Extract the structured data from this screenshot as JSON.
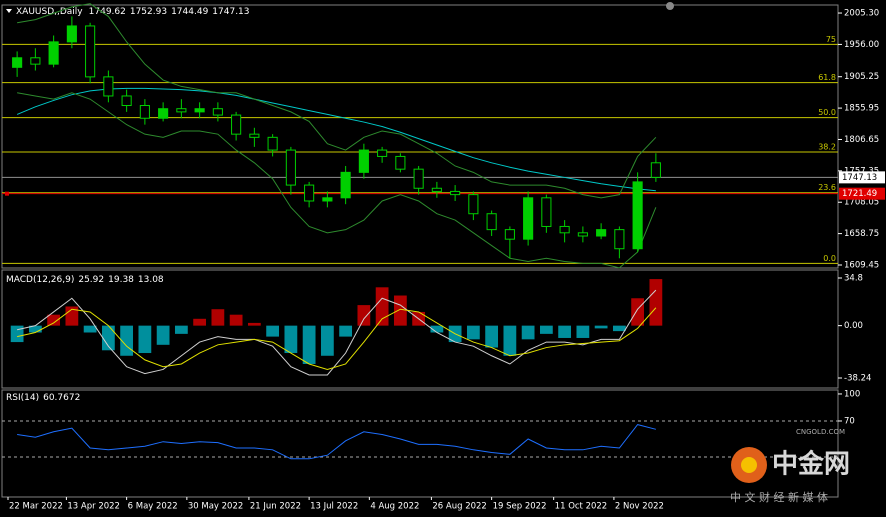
{
  "chart_data": [
    {
      "type": "candlestick",
      "title": "XAUUSD,,Daily",
      "readouts": [
        1749.62,
        1752.93,
        1744.49,
        1747.13
      ],
      "open": [
        1920,
        1935,
        1925,
        1960,
        1985,
        1905,
        1875,
        1860,
        1840,
        1855,
        1850,
        1855,
        1845,
        1815,
        1810,
        1790,
        1735,
        1710,
        1715,
        1755,
        1790,
        1780,
        1760,
        1730,
        1725,
        1720,
        1690,
        1665,
        1650,
        1715,
        1670,
        1660,
        1655,
        1665,
        1635,
        1770
      ],
      "high": [
        1945,
        1950,
        1970,
        2000,
        1990,
        1915,
        1885,
        1870,
        1865,
        1870,
        1865,
        1865,
        1850,
        1825,
        1815,
        1795,
        1740,
        1725,
        1765,
        1800,
        1795,
        1785,
        1765,
        1740,
        1735,
        1725,
        1695,
        1670,
        1725,
        1720,
        1680,
        1670,
        1675,
        1670,
        1755,
        1785
      ],
      "low": [
        1905,
        1915,
        1920,
        1950,
        1895,
        1865,
        1850,
        1830,
        1835,
        1840,
        1840,
        1835,
        1805,
        1795,
        1780,
        1720,
        1700,
        1700,
        1705,
        1745,
        1770,
        1755,
        1720,
        1715,
        1710,
        1680,
        1655,
        1620,
        1640,
        1660,
        1645,
        1645,
        1650,
        1620,
        1630,
        1740
      ],
      "close": [
        1935,
        1925,
        1960,
        1985,
        1905,
        1875,
        1860,
        1840,
        1855,
        1850,
        1855,
        1845,
        1815,
        1810,
        1790,
        1735,
        1710,
        1715,
        1755,
        1790,
        1780,
        1760,
        1730,
        1725,
        1720,
        1690,
        1665,
        1650,
        1715,
        1670,
        1660,
        1655,
        1665,
        1635,
        1740,
        1747.13
      ],
      "color": "#00d000",
      "lines": [
        {
          "color": "#00c8c8",
          "values": [
            1846,
            1858,
            1868,
            1877,
            1883,
            1886,
            1887,
            1887,
            1886,
            1885,
            1883,
            1880,
            1876,
            1870,
            1864,
            1858,
            1852,
            1846,
            1840,
            1834,
            1827,
            1818,
            1808,
            1798,
            1788,
            1778,
            1770,
            1763,
            1757,
            1752,
            1747,
            1742,
            1737,
            1733,
            1729,
            1726
          ]
        },
        {
          "color": "#2e8b2e",
          "values": [
            1990,
            1995,
            2005,
            2015,
            2020,
            2000,
            1960,
            1925,
            1900,
            1890,
            1885,
            1880,
            1880,
            1870,
            1860,
            1850,
            1835,
            1800,
            1790,
            1810,
            1820,
            1815,
            1800,
            1785,
            1765,
            1755,
            1740,
            1735,
            1735,
            1735,
            1730,
            1720,
            1715,
            1720,
            1780,
            1810
          ]
        },
        {
          "color": "#2e8b2e",
          "values": [
            1880,
            1875,
            1870,
            1880,
            1870,
            1850,
            1830,
            1815,
            1810,
            1820,
            1820,
            1815,
            1790,
            1770,
            1745,
            1700,
            1670,
            1660,
            1665,
            1680,
            1710,
            1720,
            1710,
            1690,
            1680,
            1660,
            1640,
            1620,
            1615,
            1620,
            1615,
            1612,
            1612,
            1605,
            1630,
            1700
          ]
        }
      ],
      "fib_levels": [
        {
          "label": "75",
          "price": 1956
        },
        {
          "label": "61.8",
          "price": 1896
        },
        {
          "label": "50.0",
          "price": 1841
        },
        {
          "label": "38.2",
          "price": 1787
        },
        {
          "label": "23.6",
          "price": 1723
        },
        {
          "label": "0.0",
          "price": 1612
        }
      ],
      "fib_color": "#c8c800",
      "last_price": 1747.13,
      "marker_price": 1721.49,
      "ylim": [
        1604.72,
        2017.92
      ],
      "yticks": [
        {
          "value": 2005.3,
          "label": "2005.30"
        },
        {
          "value": 1956,
          "label": "1956.00"
        },
        1905.25,
        1855.95,
        1806.65,
        1757.35,
        1708.05,
        1658.75,
        1609.45
      ],
      "xticks": [
        {
          "value": 0,
          "label": "22 Mar 2022"
        },
        {
          "value": 3.2,
          "label": "13 Apr 2022"
        },
        {
          "value": 6.5,
          "label": "6 May 2022"
        },
        {
          "value": 9.8,
          "label": "30 May 2022"
        },
        {
          "value": 13.2,
          "label": "21 Jun 2022"
        },
        {
          "value": 16.5,
          "label": "13 Jul 2022"
        },
        {
          "value": 19.8,
          "label": "4 Aug 2022"
        },
        {
          "value": 23.2,
          "label": "26 Aug 2022"
        },
        {
          "value": 26.5,
          "label": "19 Sep 2022"
        },
        {
          "value": 29.9,
          "label": "11 Oct 2022"
        },
        {
          "value": 33.2,
          "label": "2 Nov 2022"
        }
      ]
    },
    {
      "type": "macd",
      "title": "MACD(12,26,9)",
      "readouts": [
        25.92,
        19.38,
        13.08
      ],
      "histogram": {
        "up_color": "#d00000",
        "down_color": "#00a8b8",
        "values": [
          -12,
          -5,
          8,
          14,
          -5,
          -18,
          -22,
          -20,
          -14,
          -6,
          5,
          12,
          8,
          2,
          -8,
          -20,
          -28,
          -22,
          -8,
          15,
          28,
          22,
          10,
          -5,
          -12,
          -10,
          -16,
          -22,
          -10,
          -6,
          -9,
          -9,
          -2,
          -4,
          20,
          34
        ]
      },
      "series": [
        {
          "color": "#d0d0d0",
          "values": [
            -3,
            0,
            10,
            20,
            5,
            -15,
            -30,
            -35,
            -32,
            -22,
            -12,
            -8,
            -10,
            -10,
            -15,
            -30,
            -36,
            -36,
            -20,
            5,
            20,
            15,
            5,
            -5,
            -12,
            -15,
            -22,
            -28,
            -18,
            -12,
            -12,
            -14,
            -10,
            -10,
            12,
            25.92
          ]
        },
        {
          "color": "#e0e000",
          "values": [
            -8,
            -5,
            2,
            12,
            10,
            0,
            -15,
            -25,
            -30,
            -28,
            -20,
            -14,
            -12,
            -10,
            -12,
            -20,
            -28,
            -32,
            -28,
            -12,
            5,
            12,
            10,
            2,
            -6,
            -12,
            -16,
            -22,
            -20,
            -16,
            -14,
            -13,
            -12,
            -11,
            -2,
            13.08
          ]
        }
      ],
      "ylim": [
        -45.54,
        40.64
      ],
      "yticks": [
        34.8,
        {
          "value": 0,
          "label": "0.00"
        },
        -38.24
      ]
    },
    {
      "type": "line",
      "title": "RSI(14)",
      "readouts": [
        60.7672
      ],
      "series": [
        {
          "color": "#1e6fff",
          "values": [
            55,
            52,
            58,
            62,
            40,
            38,
            40,
            42,
            47,
            45,
            47,
            46,
            40,
            40,
            38,
            28,
            28,
            32,
            48,
            58,
            55,
            50,
            44,
            44,
            42,
            38,
            35,
            33,
            50,
            40,
            38,
            38,
            42,
            40,
            66,
            60.7672
          ]
        }
      ],
      "levels": [
        70,
        30
      ],
      "ylim": [
        -14.4,
        104.4
      ],
      "yticks": [
        100,
        70
      ]
    }
  ],
  "watermark": {
    "logo": "中金网",
    "site": "CNGOLD.COM",
    "tagline": "中 文 财 经 新 媒 体"
  }
}
